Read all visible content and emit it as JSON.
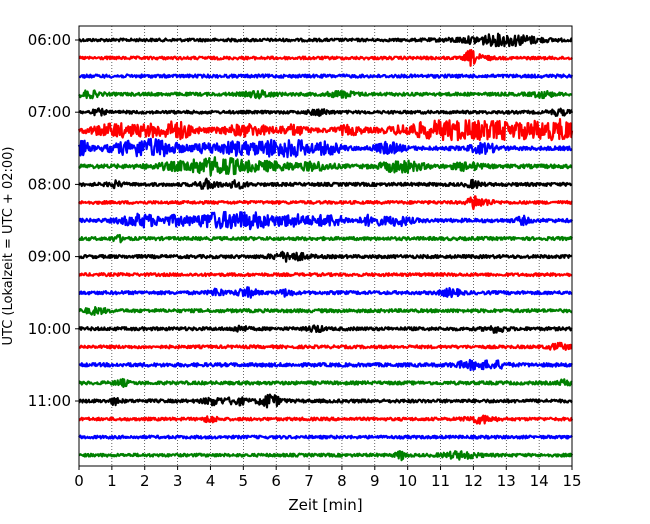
{
  "chart_data": {
    "type": "line",
    "title": "",
    "xlabel": "Zeit  [min]",
    "ylabel": "UTC (Lokalzeit = UTC + 02:00)",
    "xlim": [
      0,
      15
    ],
    "x_ticks": [
      0,
      1,
      2,
      3,
      4,
      5,
      6,
      7,
      8,
      9,
      10,
      11,
      12,
      13,
      14,
      15
    ],
    "x_tick_labels": [
      "0",
      "1",
      "2",
      "3",
      "4",
      "5",
      "6",
      "7",
      "8",
      "9",
      "10",
      "11",
      "12",
      "13",
      "14",
      "15"
    ],
    "y_tick_labels": [
      "06:00",
      "07:00",
      "08:00",
      "09:00",
      "10:00",
      "11:00"
    ],
    "minutes_per_trace": 15,
    "trace_colors": [
      "#000000",
      "#ff0000",
      "#0000ff",
      "#008000"
    ],
    "grid": "vertical dotted lines at every minute",
    "series": [
      {
        "start": "06:00",
        "color": "#000000",
        "noise": 0.9,
        "bursts": [
          [
            12.6,
            2.0,
            1.2
          ],
          [
            13.2,
            1.6,
            0.8
          ]
        ]
      },
      {
        "start": "06:15",
        "color": "#ff0000",
        "noise": 0.9,
        "bursts": [
          [
            11.9,
            4.0,
            0.15
          ],
          [
            12.2,
            1.5,
            0.3
          ]
        ]
      },
      {
        "start": "06:30",
        "color": "#0000ff",
        "noise": 1.0,
        "bursts": []
      },
      {
        "start": "06:45",
        "color": "#008000",
        "noise": 1.0,
        "bursts": [
          [
            0.3,
            1.8,
            0.3
          ],
          [
            5.5,
            1.8,
            0.4
          ],
          [
            8.0,
            1.6,
            0.4
          ],
          [
            14.1,
            1.6,
            0.3
          ]
        ]
      },
      {
        "start": "07:00",
        "color": "#000000",
        "noise": 0.9,
        "bursts": [
          [
            0.6,
            1.6,
            0.2
          ],
          [
            7.3,
            1.6,
            0.3
          ],
          [
            14.6,
            1.6,
            0.3
          ]
        ]
      },
      {
        "start": "07:15",
        "color": "#ff0000",
        "noise": 1.3,
        "bursts": [
          [
            1.1,
            3.5,
            0.7
          ],
          [
            2.2,
            2.5,
            0.5
          ],
          [
            3.0,
            4.5,
            0.5
          ],
          [
            5.1,
            3.0,
            0.7
          ],
          [
            6.5,
            2.5,
            0.4
          ],
          [
            8.2,
            2.2,
            0.4
          ],
          [
            10.2,
            2.5,
            0.8
          ],
          [
            11.2,
            4.0,
            0.8
          ],
          [
            12.2,
            3.5,
            0.8
          ],
          [
            13.0,
            2.8,
            0.6
          ],
          [
            14.0,
            4.5,
            0.7
          ],
          [
            14.8,
            4.5,
            0.4
          ]
        ]
      },
      {
        "start": "07:30",
        "color": "#0000ff",
        "noise": 1.2,
        "bursts": [
          [
            0.1,
            4.0,
            0.2
          ],
          [
            1.8,
            4.2,
            0.8
          ],
          [
            2.6,
            2.8,
            0.5
          ],
          [
            4.0,
            2.5,
            0.6
          ],
          [
            4.8,
            2.8,
            0.4
          ],
          [
            5.7,
            3.8,
            0.6
          ],
          [
            6.6,
            4.0,
            0.6
          ],
          [
            7.6,
            3.0,
            0.4
          ],
          [
            9.4,
            3.0,
            0.4
          ],
          [
            12.3,
            2.6,
            0.4
          ]
        ]
      },
      {
        "start": "07:45",
        "color": "#008000",
        "noise": 1.2,
        "bursts": [
          [
            3.5,
            2.5,
            1.1
          ],
          [
            4.4,
            3.5,
            0.7
          ],
          [
            5.8,
            2.2,
            0.8
          ],
          [
            7.2,
            2.0,
            0.5
          ],
          [
            9.8,
            3.2,
            0.6
          ],
          [
            11.8,
            2.0,
            0.4
          ]
        ]
      },
      {
        "start": "08:00",
        "color": "#000000",
        "noise": 1.0,
        "bursts": [
          [
            1.1,
            1.6,
            0.2
          ],
          [
            3.9,
            2.6,
            0.3
          ],
          [
            4.8,
            1.8,
            0.3
          ],
          [
            12.0,
            2.0,
            0.2
          ]
        ]
      },
      {
        "start": "08:15",
        "color": "#ff0000",
        "noise": 0.9,
        "bursts": [
          [
            12.0,
            4.0,
            0.15
          ],
          [
            12.3,
            1.8,
            0.3
          ]
        ]
      },
      {
        "start": "08:30",
        "color": "#0000ff",
        "noise": 1.1,
        "bursts": [
          [
            1.9,
            3.5,
            0.6
          ],
          [
            3.0,
            2.5,
            0.4
          ],
          [
            4.0,
            4.0,
            0.5
          ],
          [
            4.8,
            4.0,
            0.5
          ],
          [
            5.5,
            3.2,
            0.5
          ],
          [
            6.5,
            3.2,
            0.5
          ],
          [
            7.6,
            3.0,
            0.5
          ],
          [
            8.9,
            3.0,
            0.3
          ],
          [
            9.7,
            2.6,
            0.4
          ],
          [
            13.5,
            2.0,
            0.2
          ]
        ]
      },
      {
        "start": "08:45",
        "color": "#008000",
        "noise": 1.0,
        "bursts": [
          [
            1.2,
            1.5,
            0.2
          ]
        ]
      },
      {
        "start": "09:00",
        "color": "#000000",
        "noise": 1.0,
        "bursts": [
          [
            6.4,
            2.5,
            0.5
          ]
        ]
      },
      {
        "start": "09:15",
        "color": "#ff0000",
        "noise": 0.9,
        "bursts": []
      },
      {
        "start": "09:30",
        "color": "#0000ff",
        "noise": 1.0,
        "bursts": [
          [
            4.2,
            2.2,
            0.2
          ],
          [
            5.1,
            2.6,
            0.3
          ],
          [
            6.3,
            1.8,
            0.2
          ],
          [
            11.3,
            2.0,
            0.3
          ]
        ]
      },
      {
        "start": "09:45",
        "color": "#008000",
        "noise": 1.0,
        "bursts": [
          [
            0.5,
            1.8,
            0.3
          ]
        ]
      },
      {
        "start": "10:00",
        "color": "#000000",
        "noise": 1.0,
        "bursts": [
          [
            4.9,
            1.6,
            0.2
          ],
          [
            7.2,
            2.0,
            0.2
          ],
          [
            12.7,
            1.8,
            0.3
          ]
        ]
      },
      {
        "start": "10:15",
        "color": "#ff0000",
        "noise": 0.9,
        "bursts": [
          [
            14.6,
            1.8,
            0.3
          ]
        ]
      },
      {
        "start": "10:30",
        "color": "#0000ff",
        "noise": 1.1,
        "bursts": [
          [
            12.0,
            2.2,
            0.5
          ],
          [
            12.7,
            1.6,
            0.3
          ]
        ]
      },
      {
        "start": "10:45",
        "color": "#008000",
        "noise": 1.0,
        "bursts": [
          [
            1.3,
            1.6,
            0.2
          ],
          [
            14.8,
            1.6,
            0.2
          ]
        ]
      },
      {
        "start": "11:00",
        "color": "#000000",
        "noise": 1.0,
        "bursts": [
          [
            1.1,
            1.8,
            0.15
          ],
          [
            4.1,
            2.0,
            0.3
          ],
          [
            4.8,
            2.0,
            0.3
          ],
          [
            5.8,
            4.0,
            0.3
          ]
        ]
      },
      {
        "start": "11:15",
        "color": "#ff0000",
        "noise": 0.9,
        "bursts": [
          [
            4.0,
            1.8,
            0.2
          ],
          [
            12.2,
            2.2,
            0.4
          ]
        ]
      },
      {
        "start": "11:30",
        "color": "#0000ff",
        "noise": 0.9,
        "bursts": []
      },
      {
        "start": "11:45",
        "color": "#008000",
        "noise": 0.9,
        "bursts": [
          [
            9.8,
            2.5,
            0.15
          ],
          [
            11.6,
            2.0,
            0.5
          ]
        ]
      }
    ]
  }
}
